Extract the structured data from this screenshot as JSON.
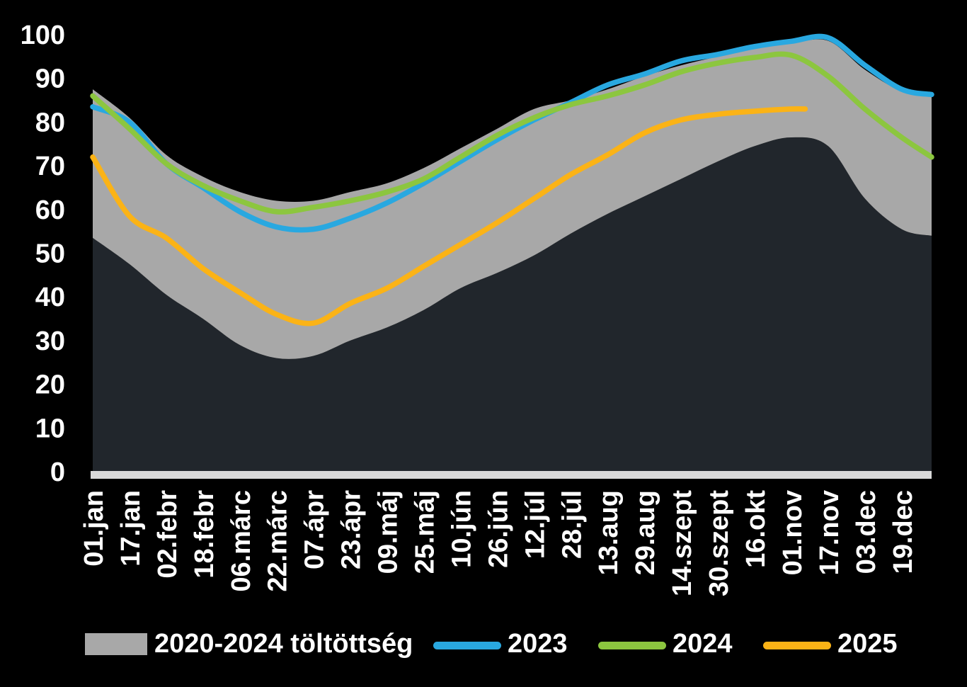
{
  "chart_data": {
    "type": "line",
    "title": "",
    "background_color": "#000000",
    "text_color": "#ffffff",
    "ylim": [
      0,
      100
    ],
    "y_ticks": [
      0,
      10,
      20,
      30,
      40,
      50,
      60,
      70,
      80,
      90,
      100
    ],
    "x_ticks": [
      {
        "label": "01.jan",
        "day": 1
      },
      {
        "label": "17.jan",
        "day": 17
      },
      {
        "label": "02.febr",
        "day": 33
      },
      {
        "label": "18.febr",
        "day": 49
      },
      {
        "label": "06.márc",
        "day": 65
      },
      {
        "label": "22.márc",
        "day": 81
      },
      {
        "label": "07.ápr",
        "day": 97
      },
      {
        "label": "23.ápr",
        "day": 113
      },
      {
        "label": "09.máj",
        "day": 129
      },
      {
        "label": "25.máj",
        "day": 145
      },
      {
        "label": "10.jún",
        "day": 161
      },
      {
        "label": "26.jún",
        "day": 177
      },
      {
        "label": "12.júl",
        "day": 193
      },
      {
        "label": "28.júl",
        "day": 209
      },
      {
        "label": "13.aug",
        "day": 225
      },
      {
        "label": "29.aug",
        "day": 241
      },
      {
        "label": "14.szept",
        "day": 257
      },
      {
        "label": "30.szept",
        "day": 273
      },
      {
        "label": "16.okt",
        "day": 289
      },
      {
        "label": "01.nov",
        "day": 305
      },
      {
        "label": "17.nov",
        "day": 321
      },
      {
        "label": "03.dec",
        "day": 337
      },
      {
        "label": "19.dec",
        "day": 353
      }
    ],
    "band": {
      "name": "2020-2024 töltöttség",
      "color": "#a8a8a8",
      "days": [
        1,
        17,
        33,
        49,
        65,
        81,
        97,
        113,
        129,
        145,
        161,
        177,
        193,
        209,
        225,
        241,
        257,
        273,
        289,
        305,
        321,
        337,
        353,
        366
      ],
      "max": [
        87.5,
        81,
        72.5,
        67.5,
        64,
        62,
        62,
        64,
        66,
        69.5,
        74,
        78.5,
        83,
        85,
        87.5,
        90.5,
        93,
        95,
        96.8,
        98,
        98.6,
        92,
        87,
        85.8
      ],
      "min": [
        53.5,
        47.5,
        40.5,
        35,
        29,
        26,
        26.5,
        30,
        33,
        37,
        42,
        45.5,
        49.5,
        54.5,
        59,
        63,
        67,
        71,
        74.5,
        76.5,
        74.5,
        62.5,
        55.5,
        54
      ]
    },
    "below_band_fill": "#21262c",
    "axis_strip_color": "#d9d9d9",
    "series": [
      {
        "name": "2023",
        "color": "#29a8e0",
        "days": [
          1,
          17,
          33,
          49,
          65,
          81,
          97,
          113,
          129,
          145,
          161,
          177,
          193,
          209,
          225,
          241,
          257,
          273,
          289,
          305,
          321,
          337,
          353,
          366
        ],
        "values": [
          83.5,
          80,
          70.5,
          65,
          59.5,
          56,
          55.5,
          58,
          61.5,
          66,
          71,
          76,
          80.5,
          84.5,
          88.5,
          91,
          94,
          95.5,
          97.3,
          98.5,
          99.3,
          93,
          87.5,
          86.3
        ]
      },
      {
        "name": "2024",
        "color": "#8cc63f",
        "days": [
          1,
          17,
          33,
          49,
          65,
          81,
          97,
          113,
          129,
          145,
          161,
          177,
          193,
          209,
          225,
          241,
          257,
          273,
          289,
          305,
          321,
          337,
          353,
          366
        ],
        "values": [
          86,
          78.5,
          70.5,
          65.5,
          62,
          59.5,
          60.5,
          62,
          64,
          67,
          72,
          77,
          81,
          84,
          86,
          88.5,
          91.5,
          93.5,
          94.8,
          95.3,
          90.5,
          83,
          76.5,
          72
        ]
      },
      {
        "name": "2025",
        "color": "#fbb316",
        "days": [
          1,
          17,
          33,
          49,
          65,
          81,
          97,
          113,
          129,
          145,
          161,
          177,
          193,
          209,
          225,
          241,
          257,
          273,
          289,
          305,
          311
        ],
        "values": [
          72,
          58.5,
          53.5,
          46.5,
          41,
          36,
          34,
          38.5,
          42,
          47,
          52,
          57,
          62.5,
          68,
          72.5,
          77.5,
          80.5,
          81.8,
          82.5,
          83,
          83
        ]
      }
    ],
    "legend_position": "bottom"
  },
  "legend": {
    "items": [
      {
        "label": "2020-2024 töltöttség",
        "color": "#a8a8a8",
        "swatch": "box"
      },
      {
        "label": "2023",
        "color": "#29a8e0",
        "swatch": "line"
      },
      {
        "label": "2024",
        "color": "#8cc63f",
        "swatch": "line"
      },
      {
        "label": "2025",
        "color": "#fbb316",
        "swatch": "line"
      }
    ]
  }
}
